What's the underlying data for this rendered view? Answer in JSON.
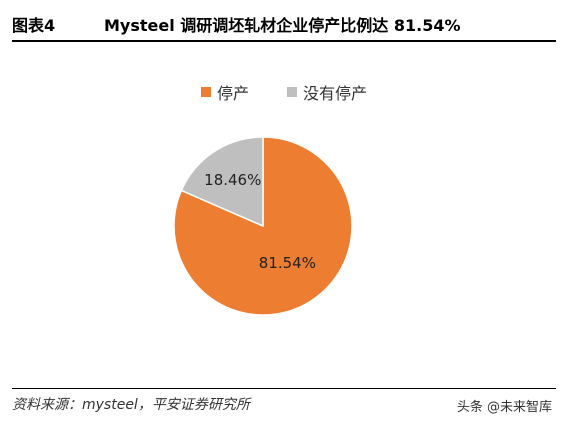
{
  "header": {
    "figure_no": "图表4",
    "title": "Mysteel 调研调坯轧材企业停产比例达 81.54%"
  },
  "colors": {
    "stopped": "#ED7D31",
    "not_stopped": "#BFBFBF"
  },
  "chart_data": {
    "type": "pie",
    "title": "",
    "legend_position": "top",
    "slices": [
      {
        "name": "停产",
        "value": 81.54,
        "label": "81.54%"
      },
      {
        "name": "没有停产",
        "value": 18.46,
        "label": "18.46%"
      }
    ]
  },
  "footer": {
    "source": "资料来源：mysteel，平安证券研究所",
    "watermark": "头条 @未来智库"
  }
}
